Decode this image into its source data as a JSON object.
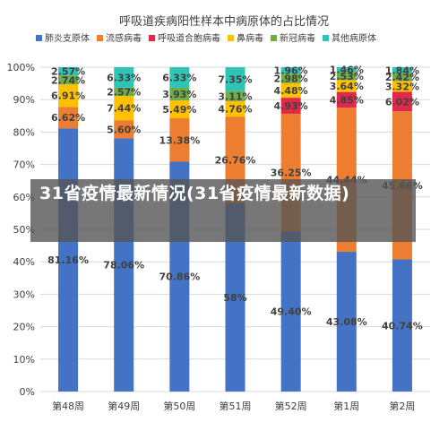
{
  "chart_data": {
    "type": "bar",
    "stacked": true,
    "title": "呼吸道疾病阳性样本中病原体的占比情况",
    "xlabel": "",
    "ylabel": "",
    "ylim": [
      0,
      100
    ],
    "y_tick_labels": [
      "0%",
      "10%",
      "20%",
      "30%",
      "40%",
      "50%",
      "60%",
      "70%",
      "80%",
      "90%",
      "100%"
    ],
    "grid": true,
    "legend_position": "top",
    "categories": [
      "第48周",
      "第49周",
      "第50周",
      "第51周",
      "第52周",
      "第1周",
      "第2周"
    ],
    "series": [
      {
        "name": "肺炎支原体",
        "color": "#4472c4",
        "values": [
          81.16,
          78.06,
          70.86,
          58,
          49.4,
          43.08,
          40.74
        ],
        "labels": [
          "81.16%",
          "78.06%",
          "70.86%",
          "58%",
          "49.40%",
          "43.08%",
          "40.74%"
        ]
      },
      {
        "name": "流感病毒",
        "color": "#ed7d31",
        "values": [
          6.62,
          5.6,
          13.38,
          26.76,
          36.25,
          44.44,
          45.66
        ],
        "labels": [
          "6.62%",
          "5.60%",
          "13.38%",
          "26.76%",
          "36.25%",
          "44.44%",
          "45.66%"
        ]
      },
      {
        "name": "呼吸道合胞病毒",
        "color": "#e0294a",
        "values": [
          0,
          0,
          0,
          0,
          4.93,
          4.85,
          6.02
        ],
        "labels": [
          "",
          "",
          "",
          "",
          "4.93%",
          "4.85%",
          "6.02%"
        ]
      },
      {
        "name": "鼻病毒",
        "color": "#ffc000",
        "values": [
          6.91,
          7.44,
          5.49,
          4.76,
          4.48,
          3.64,
          3.32
        ],
        "labels": [
          "6.91%",
          "7.44%",
          "5.49%",
          "4.76%",
          "4.48%",
          "3.64%",
          "3.32%"
        ]
      },
      {
        "name": "新冠病毒",
        "color": "#70ad47",
        "values": [
          2.74,
          2.57,
          3.93,
          3.11,
          2.98,
          2.53,
          2.42
        ],
        "labels": [
          "2.74%",
          "2.57%",
          "3.93%",
          "3.11%",
          "2.98%",
          "2.53%",
          "2.42%"
        ]
      },
      {
        "name": "其他病原体",
        "color": "#2ec4b6",
        "values": [
          2.57,
          6.33,
          6.33,
          7.35,
          1.96,
          1.46,
          1.84
        ],
        "labels": [
          "2.57%",
          "6.33%",
          "6.33%",
          "7.35%",
          "1.96%",
          "1.46%",
          "1.84%"
        ]
      }
    ]
  },
  "overlay": {
    "headline": "31省疫情最新情况(31省疫情最新数据)"
  },
  "colors": {
    "grid": "#d9d9d9",
    "text": "#404040",
    "banner_bg": "#555555"
  }
}
